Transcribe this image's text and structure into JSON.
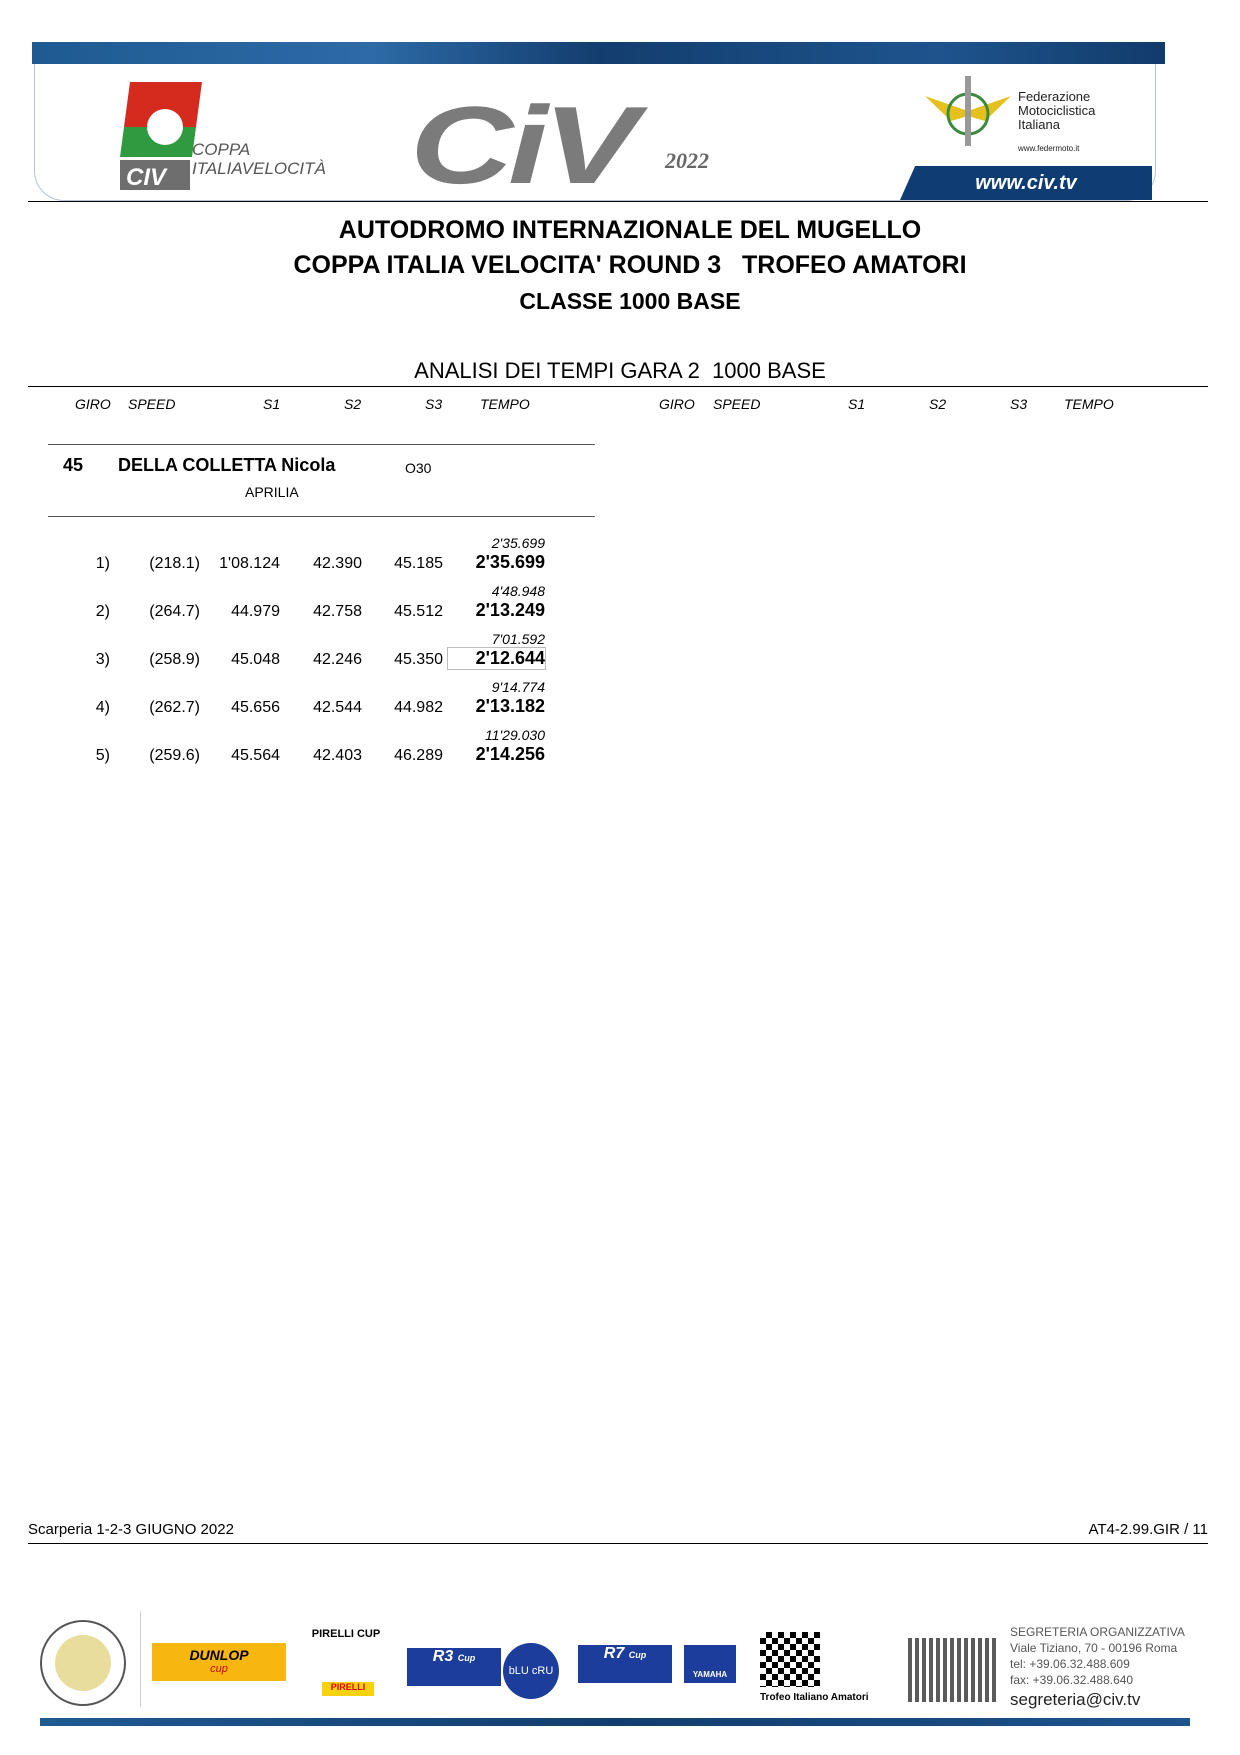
{
  "header": {
    "brand": "CiV",
    "year": "2022",
    "coppa_line1": "COPPA",
    "coppa_line2": "ITALIAVELOCITÀ",
    "coppa_badge": "CIV",
    "fmi_name": [
      "Federazione",
      "Motociclistica",
      "Italiana"
    ],
    "fmi_web": "www.federmoto.it",
    "site": "www.civ.tv"
  },
  "titles": {
    "line1": "AUTODROMO INTERNAZIONALE DEL MUGELLO",
    "line2": "COPPA ITALIA VELOCITA' ROUND 3   TROFEO AMATORI",
    "line3": "CLASSE 1000 BASE",
    "section": "ANALISI DEI TEMPI GARA 2  1000 BASE"
  },
  "columns": {
    "giro": "GIRO",
    "speed": "SPEED",
    "s1": "S1",
    "s2": "S2",
    "s3": "S3",
    "tempo": "TEMPO"
  },
  "rider": {
    "number": "45",
    "name": "DELLA COLLETTA Nicola",
    "category": "O30",
    "bike": "APRILIA"
  },
  "laps": [
    {
      "giro": "1)",
      "speed": "(218.1)",
      "s1": "1'08.124",
      "s2": "42.390",
      "s3": "45.185",
      "cumulative": "2'35.699",
      "tempo": "2'35.699",
      "best": false
    },
    {
      "giro": "2)",
      "speed": "(264.7)",
      "s1": "44.979",
      "s2": "42.758",
      "s3": "45.512",
      "cumulative": "4'48.948",
      "tempo": "2'13.249",
      "best": false
    },
    {
      "giro": "3)",
      "speed": "(258.9)",
      "s1": "45.048",
      "s2": "42.246",
      "s3": "45.350",
      "cumulative": "7'01.592",
      "tempo": "2'12.644",
      "best": true
    },
    {
      "giro": "4)",
      "speed": "(262.7)",
      "s1": "45.656",
      "s2": "42.544",
      "s3": "44.982",
      "cumulative": "9'14.774",
      "tempo": "2'13.182",
      "best": false
    },
    {
      "giro": "5)",
      "speed": "(259.6)",
      "s1": "45.564",
      "s2": "42.403",
      "s3": "46.289",
      "cumulative": "11'29.030",
      "tempo": "2'14.256",
      "best": false
    }
  ],
  "footer": {
    "left": "Scarperia 1-2-3  GIUGNO 2022",
    "right": "AT4-2.99.GIR / 11"
  },
  "sponsors": {
    "dunlop": "DUNLOP",
    "dunlop_sub": "cup",
    "pirelli_cup": "PIRELLI CUP",
    "pirelli": "PIRELLI",
    "r3": "R3",
    "r3_sub": "Cup",
    "blucru": "bLU cRU",
    "r7": "R7",
    "r7_sub": "Cup",
    "yamaha": "YAMAHA",
    "trofeo": "Trofeo Italiano Amatori"
  },
  "contact": {
    "title": "SEGRETERIA ORGANIZZATIVA",
    "address": "Viale Tiziano, 70 - 00196 Roma",
    "tel": "tel: +39.06.32.488.609",
    "fax": "fax: +39.06.32.488.640",
    "email": "segreteria@civ.tv"
  },
  "colors": {
    "brand_blue": "#0f3c73",
    "civ_gray": "#7b7b7b"
  }
}
